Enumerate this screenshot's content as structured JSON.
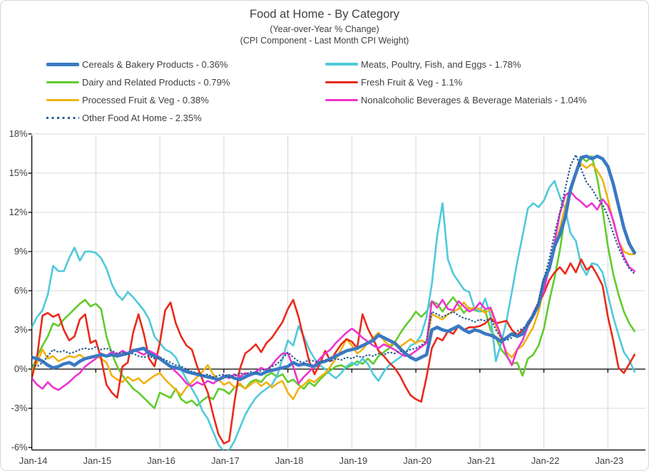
{
  "title": "Food at Home - By Category",
  "subtitle1": "(Year-over-Year % Change)",
  "subtitle2": "(CPI Component - Last Month CPI Weight)",
  "chart_data": {
    "type": "line",
    "x_unit": "month",
    "x_start": "Jan-2014",
    "x_end": "Jun-2023",
    "x_tick_labels": [
      "Jan-14",
      "Jan-15",
      "Jan-16",
      "Jan-17",
      "Jan-18",
      "Jan-19",
      "Jan-20",
      "Jan-21",
      "Jan-22",
      "Jan-23"
    ],
    "y_tick_labels": [
      "18%",
      "15%",
      "12%",
      "9%",
      "6%",
      "3%",
      "0%",
      "-3%",
      "-6%"
    ],
    "y_ticks": [
      18,
      15,
      12,
      9,
      6,
      3,
      0,
      -3,
      -6
    ],
    "ylim": [
      -6,
      18
    ],
    "grid": true,
    "legend_position": "top-left-two-columns",
    "axis_color": "#000000",
    "grid_color": "#d9d9d9",
    "series": [
      {
        "name": "Cereals & Bakery Products - 0.36%",
        "color": "#3a79c3",
        "style": "solid",
        "width": 4.6,
        "values": [
          0.9,
          0.8,
          0.6,
          0.3,
          0.1,
          0.2,
          0.4,
          0.5,
          0.3,
          0.6,
          0.8,
          0.9,
          1.0,
          1.1,
          1.0,
          1.1,
          1.0,
          1.1,
          1.2,
          1.4,
          1.5,
          1.6,
          1.2,
          1.0,
          0.8,
          0.5,
          0.2,
          0.1,
          0.0,
          -0.2,
          -0.3,
          -0.4,
          -0.5,
          -0.6,
          -0.7,
          -0.8,
          -0.6,
          -0.5,
          -0.7,
          -0.8,
          -0.6,
          -0.4,
          -0.3,
          -0.4,
          -0.2,
          -0.1,
          0.0,
          0.1,
          0.2,
          0.5,
          0.3,
          0.4,
          0.3,
          0.2,
          0.5,
          0.6,
          0.8,
          1.0,
          1.2,
          1.4,
          1.5,
          1.6,
          1.8,
          2.0,
          2.2,
          2.6,
          2.4,
          2.2,
          2.0,
          1.6,
          1.2,
          0.9,
          0.7,
          0.9,
          1.1,
          3.0,
          3.2,
          3.0,
          2.9,
          3.1,
          3.3,
          3.0,
          2.8,
          3.0,
          2.9,
          2.7,
          2.6,
          2.4,
          2.1,
          2.4,
          2.7,
          2.5,
          2.7,
          3.5,
          4.1,
          4.9,
          6.8,
          7.7,
          9.4,
          10.3,
          11.6,
          13.8,
          15.0,
          16.2,
          16.3,
          16.1,
          16.3,
          16.1,
          15.5,
          14.2,
          12.5,
          10.8,
          9.6,
          8.9
        ]
      },
      {
        "name": "Meats, Poultry, Fish, and Eggs - 1.78%",
        "color": "#4fc9da",
        "style": "solid",
        "width": 2.6,
        "values": [
          3.2,
          4.0,
          4.5,
          5.7,
          7.9,
          7.5,
          7.5,
          8.5,
          9.3,
          8.3,
          9.0,
          9.0,
          8.9,
          8.5,
          7.7,
          6.5,
          5.7,
          5.3,
          5.9,
          5.5,
          5.0,
          4.5,
          3.8,
          2.5,
          2.0,
          1.5,
          1.3,
          0.9,
          0.0,
          -0.8,
          -1.5,
          -2.2,
          -3.2,
          -3.8,
          -4.8,
          -5.8,
          -6.3,
          -6.2,
          -5.5,
          -4.5,
          -3.5,
          -2.8,
          -2.2,
          -1.8,
          -1.5,
          -1.2,
          -0.5,
          0.8,
          2.2,
          1.8,
          3.3,
          2.5,
          1.5,
          0.8,
          0.3,
          0.0,
          -0.4,
          -0.7,
          -0.3,
          0.2,
          0.5,
          0.3,
          0.8,
          0.4,
          -0.4,
          -0.9,
          -0.2,
          0.3,
          0.6,
          0.9,
          1.2,
          1.8,
          2.0,
          2.6,
          4.0,
          6.5,
          10.2,
          12.7,
          8.4,
          7.3,
          6.7,
          6.1,
          5.9,
          4.6,
          4.4,
          5.4,
          4.1,
          0.6,
          2.0,
          3.7,
          5.9,
          8.2,
          10.2,
          12.3,
          12.7,
          12.4,
          12.9,
          13.9,
          14.4,
          13.2,
          12.2,
          10.4,
          9.8,
          7.9,
          7.2,
          8.1,
          8.0,
          7.4,
          5.7,
          4.0,
          2.6,
          1.3,
          0.7,
          -0.2
        ]
      },
      {
        "name": "Dairy and Related Products - 0.79%",
        "color": "#61cc2d",
        "style": "solid",
        "width": 2.6,
        "values": [
          -0.1,
          1.0,
          1.8,
          2.5,
          3.5,
          3.3,
          3.8,
          4.2,
          4.6,
          5.0,
          5.3,
          4.8,
          5.0,
          4.6,
          2.5,
          1.2,
          0.2,
          -0.5,
          -1.0,
          -1.5,
          -1.8,
          -2.2,
          -2.6,
          -3.0,
          -1.8,
          -2.0,
          -2.2,
          -1.5,
          -2.3,
          -2.6,
          -2.4,
          -2.8,
          -2.4,
          -2.1,
          -2.3,
          -1.5,
          -1.6,
          -1.9,
          -1.4,
          -1.2,
          -1.5,
          -1.0,
          -0.8,
          -1.0,
          -0.5,
          -0.3,
          -0.6,
          -0.4,
          -1.0,
          -0.8,
          -1.2,
          -1.5,
          -1.0,
          -1.3,
          -0.8,
          -0.4,
          -0.1,
          0.2,
          0.3,
          0.1,
          0.3,
          0.6,
          0.4,
          0.8,
          0.4,
          1.0,
          1.3,
          1.6,
          2.0,
          2.7,
          3.3,
          3.8,
          4.4,
          4.0,
          4.4,
          5.2,
          5.0,
          4.4,
          5.0,
          5.5,
          4.9,
          4.3,
          4.7,
          4.5,
          4.4,
          4.5,
          3.0,
          2.4,
          1.5,
          1.0,
          0.4,
          0.5,
          -0.5,
          0.8,
          1.1,
          1.8,
          3.1,
          5.2,
          7.0,
          9.1,
          11.8,
          13.5,
          14.9,
          16.2,
          15.9,
          16.3,
          14.6,
          12.2,
          9.4,
          7.3,
          5.7,
          4.4,
          3.5,
          2.9
        ]
      },
      {
        "name": "Fresh Fruit & Veg - 1.1%",
        "color": "#e92a1c",
        "style": "solid",
        "width": 2.6,
        "values": [
          -0.7,
          1.0,
          4.1,
          4.3,
          4.0,
          4.2,
          3.0,
          2.2,
          2.5,
          3.8,
          4.2,
          2.0,
          2.2,
          0.8,
          -1.2,
          -1.8,
          -2.2,
          0.2,
          0.5,
          2.8,
          4.2,
          2.7,
          0.8,
          0.2,
          2.0,
          4.5,
          5.1,
          3.5,
          2.5,
          1.8,
          1.5,
          0.2,
          -0.8,
          -1.8,
          -3.5,
          -5.0,
          -5.7,
          -5.5,
          -2.5,
          0.0,
          1.2,
          1.5,
          1.9,
          1.3,
          2.0,
          2.4,
          3.0,
          3.6,
          4.6,
          5.3,
          4.0,
          2.3,
          0.6,
          -0.4,
          0.4,
          1.4,
          0.6,
          1.3,
          1.9,
          2.3,
          2.1,
          1.6,
          4.2,
          3.1,
          2.3,
          1.4,
          1.0,
          0.5,
          0.1,
          -0.5,
          -1.3,
          -2.0,
          -2.3,
          -2.5,
          -0.6,
          1.6,
          2.4,
          2.2,
          2.9,
          2.7,
          3.3,
          3.0,
          3.2,
          3.2,
          3.3,
          3.5,
          3.9,
          3.5,
          3.6,
          3.7,
          3.0,
          2.6,
          3.0,
          3.3,
          4.0,
          5.0,
          5.8,
          6.8,
          7.4,
          7.8,
          7.3,
          8.1,
          7.4,
          8.4,
          7.6,
          7.9,
          7.2,
          6.4,
          4.0,
          2.2,
          0.1,
          -0.3,
          0.4,
          1.1
        ]
      },
      {
        "name": "Processed Fruit & Veg - 0.38%",
        "color": "#efb310",
        "style": "solid",
        "width": 2.6,
        "values": [
          -0.3,
          0.5,
          1.5,
          0.8,
          1.0,
          0.6,
          0.8,
          1.0,
          0.9,
          1.1,
          0.8,
          0.9,
          1.0,
          0.8,
          0.5,
          -0.5,
          -0.8,
          -1.0,
          -0.6,
          -0.9,
          -0.7,
          -1.1,
          -0.8,
          -0.5,
          -0.3,
          -0.8,
          -1.2,
          -1.6,
          -2.0,
          -1.4,
          -1.0,
          -0.6,
          -0.2,
          0.3,
          -0.4,
          -0.8,
          -1.2,
          -1.0,
          -1.4,
          -1.1,
          -1.5,
          -1.2,
          -0.9,
          -1.3,
          -1.0,
          -1.4,
          -1.1,
          -0.9,
          -1.8,
          -2.3,
          -1.5,
          -1.2,
          -0.8,
          -1.0,
          -0.6,
          -0.3,
          0.2,
          0.8,
          1.5,
          2.3,
          1.8,
          1.2,
          1.5,
          2.0,
          2.4,
          2.8,
          2.2,
          1.8,
          2.1,
          1.7,
          2.0,
          2.3,
          2.0,
          2.2,
          2.0,
          4.2,
          4.0,
          3.8,
          4.2,
          4.4,
          4.6,
          5.1,
          4.6,
          4.7,
          4.6,
          4.3,
          4.6,
          3.3,
          2.3,
          1.3,
          0.9,
          1.5,
          1.8,
          2.5,
          3.2,
          4.4,
          6.2,
          7.7,
          9.3,
          10.8,
          12.4,
          13.9,
          15.1,
          15.7,
          15.4,
          15.7,
          15.2,
          14.5,
          13.0,
          11.3,
          9.8,
          9.0,
          8.8,
          8.8
        ]
      },
      {
        "name": "Nonalcoholic Beverages & Beverage Materials - 1.04%",
        "color": "#ee33d0",
        "style": "solid",
        "width": 2.6,
        "values": [
          -0.7,
          -1.2,
          -1.5,
          -1.0,
          -1.4,
          -1.6,
          -1.3,
          -1.0,
          -0.6,
          -0.3,
          0.2,
          0.5,
          0.8,
          1.2,
          1.0,
          1.3,
          1.1,
          1.4,
          1.2,
          1.5,
          1.3,
          1.1,
          1.4,
          1.2,
          0.9,
          0.5,
          0.2,
          -0.2,
          -0.6,
          -1.1,
          -1.3,
          -1.0,
          -1.2,
          -0.9,
          -1.1,
          -0.8,
          -0.5,
          -0.7,
          -0.4,
          -0.6,
          -0.3,
          -0.5,
          -0.2,
          0.1,
          -0.1,
          0.3,
          0.8,
          1.2,
          1.2,
          0.2,
          -1.1,
          -0.6,
          -0.2,
          0.3,
          0.8,
          1.2,
          1.5,
          2.0,
          2.4,
          2.8,
          3.1,
          2.8,
          2.4,
          2.1,
          1.8,
          1.6,
          1.9,
          1.7,
          1.5,
          1.2,
          1.0,
          1.1,
          1.4,
          1.7,
          2.0,
          5.2,
          4.7,
          5.3,
          4.6,
          4.5,
          5.2,
          4.8,
          4.4,
          4.6,
          5.1,
          4.6,
          4.7,
          3.6,
          2.5,
          1.1,
          0.3,
          1.5,
          2.2,
          3.3,
          4.3,
          5.1,
          6.0,
          7.8,
          9.7,
          11.9,
          13.3,
          13.6,
          13.1,
          12.8,
          12.4,
          12.7,
          12.2,
          13.0,
          12.5,
          11.4,
          9.8,
          8.6,
          7.8,
          7.5
        ]
      },
      {
        "name": "Other Food At Home - 2.35%",
        "color": "#2b5e8e",
        "style": "dotted",
        "width": 2.3,
        "values": [
          0.3,
          0.2,
          0.5,
          1.0,
          1.5,
          1.3,
          1.4,
          1.2,
          1.3,
          1.5,
          1.6,
          1.5,
          1.7,
          1.5,
          1.6,
          1.4,
          1.2,
          1.3,
          1.1,
          1.2,
          1.0,
          0.9,
          1.0,
          0.8,
          0.9,
          0.7,
          0.5,
          0.3,
          0.2,
          0.0,
          -0.2,
          -0.3,
          -0.5,
          -0.4,
          -0.6,
          -0.5,
          -0.4,
          -0.6,
          -0.5,
          -0.3,
          -0.4,
          -0.2,
          -0.3,
          -0.1,
          0.0,
          0.2,
          0.4,
          0.8,
          1.3,
          0.9,
          0.6,
          0.5,
          0.7,
          0.6,
          0.5,
          0.7,
          0.6,
          0.8,
          0.7,
          0.9,
          0.8,
          1.0,
          0.9,
          1.1,
          1.0,
          1.2,
          1.1,
          1.3,
          1.2,
          1.4,
          1.3,
          1.5,
          1.6,
          1.8,
          2.2,
          4.4,
          4.2,
          4.0,
          4.2,
          4.4,
          4.1,
          3.9,
          3.8,
          3.6,
          3.8,
          3.7,
          3.9,
          3.0,
          2.4,
          2.2,
          2.4,
          2.9,
          3.1,
          3.4,
          4.1,
          5.2,
          6.9,
          8.4,
          10.4,
          12.0,
          13.8,
          15.6,
          16.4,
          15.3,
          14.3,
          13.8,
          13.1,
          12.6,
          11.7,
          10.4,
          9.3,
          8.4,
          7.7,
          7.3
        ]
      }
    ]
  }
}
